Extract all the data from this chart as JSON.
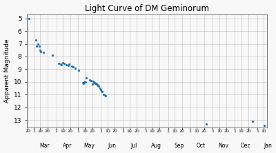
{
  "title": "Light Curve of DM Geminorum",
  "ylabel": "Apparent Magnitude",
  "background_color": "#f8f8f8",
  "point_color": "#1f6fad",
  "ylim": [
    13.6,
    4.7
  ],
  "y_ticks": [
    5,
    6,
    7,
    8,
    9,
    10,
    11,
    12,
    13
  ],
  "data_points": [
    [
      53,
      5.0
    ],
    [
      62,
      6.7
    ],
    [
      63,
      7.2
    ],
    [
      65,
      7.0
    ],
    [
      67,
      7.2
    ],
    [
      68,
      7.5
    ],
    [
      69,
      7.6
    ],
    [
      72,
      7.7
    ],
    [
      85,
      7.9
    ],
    [
      93,
      8.55
    ],
    [
      96,
      8.6
    ],
    [
      97,
      8.65
    ],
    [
      99,
      8.5
    ],
    [
      101,
      8.55
    ],
    [
      104,
      8.65
    ],
    [
      106,
      8.7
    ],
    [
      107,
      8.6
    ],
    [
      111,
      8.75
    ],
    [
      113,
      8.8
    ],
    [
      116,
      8.9
    ],
    [
      121,
      9.1
    ],
    [
      126,
      10.05
    ],
    [
      127,
      10.1
    ],
    [
      128,
      10.0
    ],
    [
      130,
      10.0
    ],
    [
      131,
      9.7
    ],
    [
      136,
      9.85
    ],
    [
      138,
      9.9
    ],
    [
      139,
      10.15
    ],
    [
      140,
      9.95
    ],
    [
      141,
      10.0
    ],
    [
      142,
      10.05
    ],
    [
      143,
      10.1
    ],
    [
      144,
      10.1
    ],
    [
      145,
      10.15
    ],
    [
      146,
      10.2
    ],
    [
      147,
      10.3
    ],
    [
      148,
      10.35
    ],
    [
      150,
      10.5
    ],
    [
      151,
      10.6
    ],
    [
      152,
      10.7
    ],
    [
      153,
      10.75
    ],
    [
      155,
      11.0
    ],
    [
      156,
      11.05
    ],
    [
      157,
      11.1
    ],
    [
      295,
      13.3
    ],
    [
      359,
      13.1
    ],
    [
      375,
      13.4
    ]
  ],
  "xmin": 50,
  "xmax": 378,
  "months": [
    {
      "name": "Mar",
      "day1": 59
    },
    {
      "name": "Apr",
      "day1": 90
    },
    {
      "name": "May",
      "day1": 120
    },
    {
      "name": "Jun",
      "day1": 151
    },
    {
      "name": "Jul",
      "day1": 181
    },
    {
      "name": "Aug",
      "day1": 212
    },
    {
      "name": "Sep",
      "day1": 243
    },
    {
      "name": "Oct",
      "day1": 273
    },
    {
      "name": "Nov",
      "day1": 304
    },
    {
      "name": "Dec",
      "day1": 334
    },
    {
      "name": "Jan",
      "day1": 365
    }
  ]
}
